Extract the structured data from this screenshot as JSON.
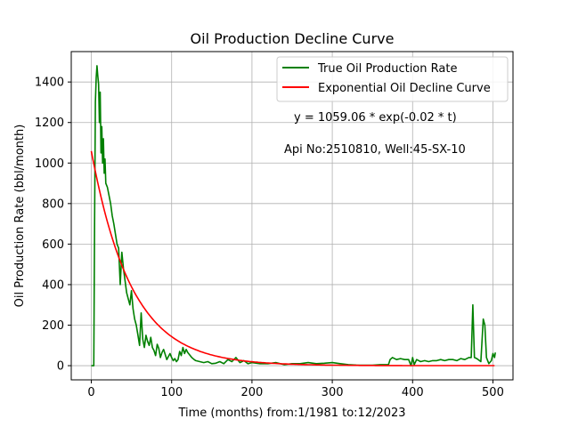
{
  "chart_data": {
    "type": "line",
    "title": "Oil Production Decline Curve",
    "xlabel": "Time (months) from:1/1981 to:12/2023",
    "ylabel": "Oil Production Rate (bbl/month)",
    "xlim": [
      -25,
      525
    ],
    "ylim": [
      -70,
      1550
    ],
    "xticks": [
      0,
      100,
      200,
      300,
      400,
      500
    ],
    "yticks": [
      0,
      200,
      400,
      600,
      800,
      1000,
      1200,
      1400
    ],
    "grid": true,
    "legend_position": "top-right",
    "annotations": [
      {
        "text": "y = 1059.06 * exp(-0.02 * t)",
        "x": 250,
        "y": 1210
      },
      {
        "text": "Api No:2510810, Well:45-SX-10",
        "x": 240,
        "y": 1055
      }
    ],
    "series": [
      {
        "name": "True Oil Production Rate",
        "color": "#008000",
        "points": [
          [
            0,
            0
          ],
          [
            3,
            0
          ],
          [
            4,
            700
          ],
          [
            5,
            1300
          ],
          [
            6,
            1420
          ],
          [
            7,
            1480
          ],
          [
            8,
            1430
          ],
          [
            9,
            1390
          ],
          [
            10,
            1200
          ],
          [
            11,
            1350
          ],
          [
            12,
            1050
          ],
          [
            13,
            1180
          ],
          [
            14,
            1000
          ],
          [
            15,
            1120
          ],
          [
            16,
            950
          ],
          [
            17,
            1020
          ],
          [
            18,
            900
          ],
          [
            20,
            880
          ],
          [
            22,
            840
          ],
          [
            24,
            800
          ],
          [
            26,
            740
          ],
          [
            28,
            700
          ],
          [
            30,
            650
          ],
          [
            32,
            600
          ],
          [
            34,
            580
          ],
          [
            36,
            400
          ],
          [
            38,
            560
          ],
          [
            40,
            480
          ],
          [
            42,
            420
          ],
          [
            44,
            360
          ],
          [
            46,
            330
          ],
          [
            48,
            300
          ],
          [
            50,
            370
          ],
          [
            52,
            280
          ],
          [
            54,
            230
          ],
          [
            56,
            200
          ],
          [
            58,
            150
          ],
          [
            60,
            100
          ],
          [
            62,
            260
          ],
          [
            64,
            130
          ],
          [
            66,
            90
          ],
          [
            68,
            150
          ],
          [
            70,
            120
          ],
          [
            72,
            100
          ],
          [
            74,
            140
          ],
          [
            76,
            90
          ],
          [
            78,
            75
          ],
          [
            80,
            50
          ],
          [
            82,
            105
          ],
          [
            84,
            85
          ],
          [
            86,
            40
          ],
          [
            88,
            65
          ],
          [
            90,
            80
          ],
          [
            92,
            55
          ],
          [
            94,
            30
          ],
          [
            96,
            45
          ],
          [
            98,
            60
          ],
          [
            100,
            40
          ],
          [
            102,
            25
          ],
          [
            104,
            35
          ],
          [
            106,
            20
          ],
          [
            108,
            30
          ],
          [
            110,
            70
          ],
          [
            112,
            50
          ],
          [
            114,
            90
          ],
          [
            116,
            60
          ],
          [
            118,
            80
          ],
          [
            120,
            65
          ],
          [
            122,
            55
          ],
          [
            125,
            40
          ],
          [
            128,
            30
          ],
          [
            130,
            25
          ],
          [
            135,
            20
          ],
          [
            140,
            15
          ],
          [
            145,
            20
          ],
          [
            150,
            10
          ],
          [
            155,
            12
          ],
          [
            160,
            20
          ],
          [
            165,
            10
          ],
          [
            170,
            30
          ],
          [
            175,
            20
          ],
          [
            180,
            40
          ],
          [
            185,
            15
          ],
          [
            190,
            25
          ],
          [
            195,
            10
          ],
          [
            200,
            15
          ],
          [
            210,
            10
          ],
          [
            220,
            10
          ],
          [
            230,
            15
          ],
          [
            240,
            5
          ],
          [
            250,
            10
          ],
          [
            260,
            10
          ],
          [
            270,
            15
          ],
          [
            280,
            10
          ],
          [
            290,
            12
          ],
          [
            300,
            15
          ],
          [
            310,
            10
          ],
          [
            320,
            5
          ],
          [
            330,
            3
          ],
          [
            340,
            2
          ],
          [
            350,
            2
          ],
          [
            360,
            5
          ],
          [
            370,
            5
          ],
          [
            372,
            30
          ],
          [
            375,
            40
          ],
          [
            380,
            30
          ],
          [
            385,
            35
          ],
          [
            390,
            30
          ],
          [
            395,
            30
          ],
          [
            398,
            0
          ],
          [
            400,
            40
          ],
          [
            402,
            5
          ],
          [
            405,
            30
          ],
          [
            410,
            20
          ],
          [
            415,
            25
          ],
          [
            420,
            20
          ],
          [
            425,
            25
          ],
          [
            430,
            25
          ],
          [
            435,
            30
          ],
          [
            440,
            25
          ],
          [
            445,
            30
          ],
          [
            450,
            30
          ],
          [
            455,
            25
          ],
          [
            460,
            35
          ],
          [
            465,
            30
          ],
          [
            470,
            40
          ],
          [
            473,
            40
          ],
          [
            475,
            300
          ],
          [
            477,
            40
          ],
          [
            480,
            35
          ],
          [
            485,
            20
          ],
          [
            488,
            230
          ],
          [
            490,
            200
          ],
          [
            492,
            40
          ],
          [
            495,
            10
          ],
          [
            498,
            25
          ],
          [
            500,
            60
          ],
          [
            502,
            40
          ],
          [
            503,
            65
          ]
        ]
      },
      {
        "name": "Exponential Oil Decline Curve",
        "color": "#ff0000",
        "amplitude": 1059.06,
        "decay": 0.02,
        "t_start": 0,
        "t_end": 503
      }
    ]
  }
}
